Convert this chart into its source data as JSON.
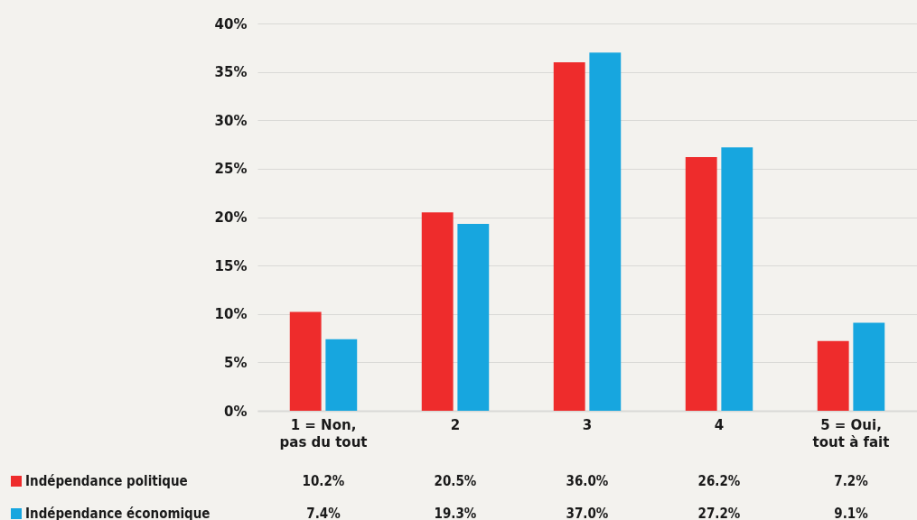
{
  "chart_data": {
    "type": "bar",
    "categories": [
      "1  = Non, pas du tout",
      "2",
      "3",
      "4",
      "5 = Oui, tout à fait"
    ],
    "series": [
      {
        "name": "Indépendance politique",
        "color": "#ee2c2c",
        "values": [
          10.2,
          20.5,
          36.0,
          26.2,
          7.2
        ],
        "value_labels": [
          "10.2%",
          "20.5%",
          "36.0%",
          "26.2%",
          "7.2%"
        ]
      },
      {
        "name": "Indépendance économique",
        "color": "#17a6df",
        "values": [
          7.4,
          19.3,
          37.0,
          27.2,
          9.1
        ],
        "value_labels": [
          "7.4%",
          "19.3%",
          "37.0%",
          "27.2%",
          "9.1%"
        ]
      }
    ],
    "ylim": [
      0,
      40
    ],
    "yticks": [
      {
        "value": 0,
        "label": "0%"
      },
      {
        "value": 5,
        "label": "5%"
      },
      {
        "value": 10,
        "label": "10%"
      },
      {
        "value": 15,
        "label": "15%"
      },
      {
        "value": 20,
        "label": "20%"
      },
      {
        "value": 25,
        "label": "25%"
      },
      {
        "value": 30,
        "label": "30%"
      },
      {
        "value": 35,
        "label": "35%"
      },
      {
        "value": 40,
        "label": "40%"
      }
    ],
    "grid": "y",
    "legend": "bottom left"
  }
}
